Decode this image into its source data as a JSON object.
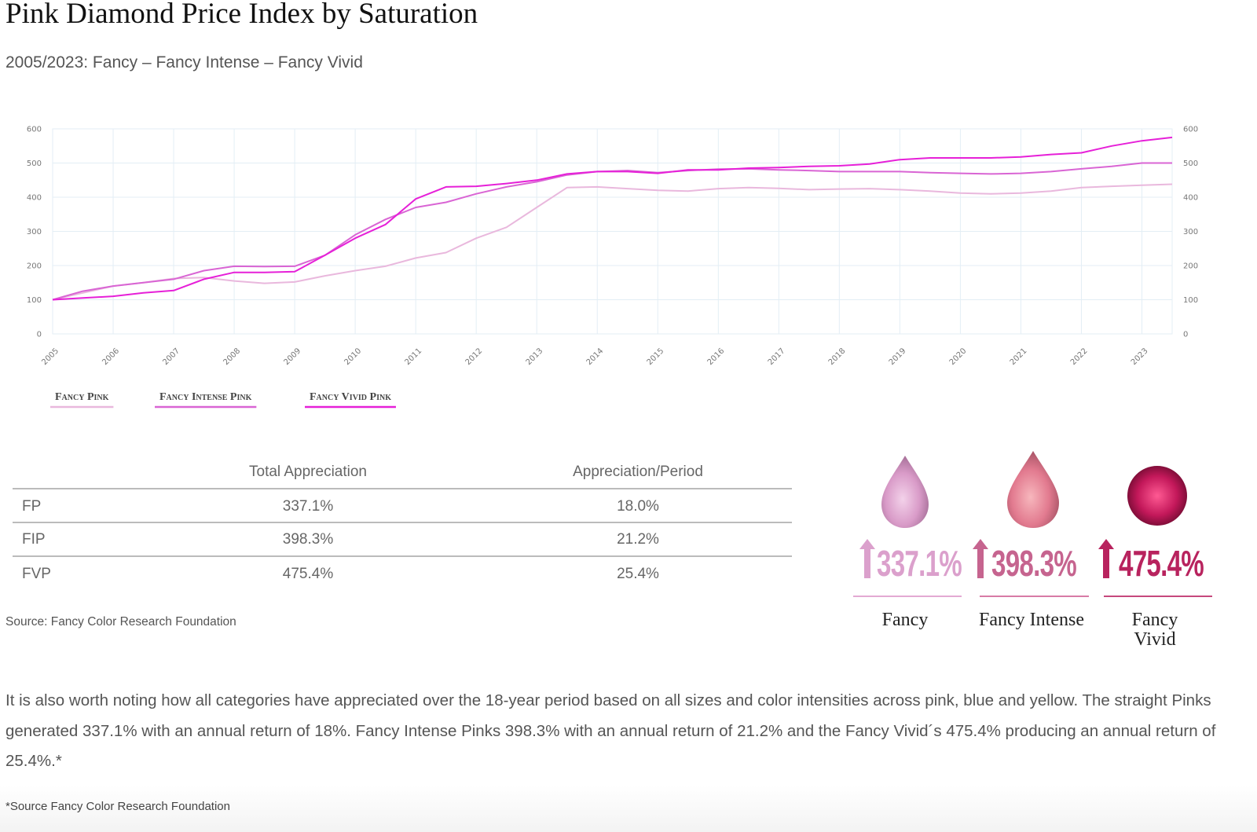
{
  "chart_data": {
    "type": "line",
    "title": "Pink Diamond Price Index by Saturation",
    "subtitle": "2005/2023: Fancy – Fancy Intense – Fancy Vivid",
    "x": [
      2005,
      2005.5,
      2006,
      2006.5,
      2007,
      2007.5,
      2008,
      2008.5,
      2009,
      2009.5,
      2010,
      2010.5,
      2011,
      2011.5,
      2012,
      2012.5,
      2013,
      2013.5,
      2014,
      2014.5,
      2015,
      2015.5,
      2016,
      2016.5,
      2017,
      2017.5,
      2018,
      2018.5,
      2019,
      2019.5,
      2020,
      2020.5,
      2021,
      2021.5,
      2022,
      2022.5,
      2023,
      2023.5
    ],
    "series": [
      {
        "name": "Fancy Pink",
        "color": "#e9b8dd",
        "values": [
          100,
          120,
          140,
          150,
          162,
          165,
          155,
          148,
          152,
          170,
          185,
          198,
          222,
          238,
          280,
          312,
          370,
          428,
          430,
          425,
          420,
          418,
          425,
          428,
          426,
          422,
          424,
          425,
          422,
          418,
          412,
          410,
          412,
          418,
          428,
          432,
          435,
          438
        ]
      },
      {
        "name": "Fancy Intense Pink",
        "color": "#d965d4",
        "values": [
          100,
          125,
          140,
          150,
          160,
          185,
          198,
          197,
          198,
          230,
          290,
          335,
          370,
          385,
          410,
          430,
          445,
          465,
          475,
          478,
          472,
          478,
          482,
          483,
          480,
          478,
          475,
          475,
          475,
          472,
          470,
          468,
          470,
          475,
          483,
          490,
          500,
          500
        ]
      },
      {
        "name": "Fancy Vivid Pink",
        "color": "#e620d8",
        "values": [
          100,
          105,
          110,
          120,
          127,
          160,
          180,
          180,
          182,
          230,
          280,
          320,
          395,
          430,
          432,
          440,
          450,
          468,
          475,
          475,
          470,
          480,
          480,
          485,
          487,
          490,
          492,
          497,
          510,
          515,
          515,
          515,
          518,
          525,
          530,
          550,
          565,
          575
        ]
      }
    ],
    "xlim": [
      2005,
      2023.5
    ],
    "xticks": [
      2005,
      2006,
      2007,
      2008,
      2009,
      2010,
      2011,
      2012,
      2013,
      2014,
      2015,
      2016,
      2017,
      2018,
      2019,
      2020,
      2021,
      2022,
      2023
    ],
    "ylim": [
      0,
      600
    ],
    "yticks": [
      0,
      100,
      200,
      300,
      400,
      500,
      600
    ],
    "y2lim": [
      0,
      600
    ],
    "y2ticks": [
      0,
      100,
      200,
      300,
      400,
      500,
      600
    ],
    "grid": true,
    "legend": "bottom-left"
  },
  "table": {
    "columns": [
      "Total Appreciation",
      "Appreciation/Period"
    ],
    "rows": [
      [
        "FP",
        "337.1%",
        "18.0%"
      ],
      [
        "FIP",
        "398.3%",
        "21.2%"
      ],
      [
        "FVP",
        "475.4%",
        "25.4%"
      ]
    ]
  },
  "source": "Source: Fancy Color Research Foundation",
  "highlights": [
    {
      "value": "337.1%",
      "label": "Fancy"
    },
    {
      "value": "398.3%",
      "label": "Fancy Intense"
    },
    {
      "value": "475.4%",
      "label": "Fancy Vivid"
    }
  ],
  "paragraph": "It is also worth noting how all categories have appreciated over the 18-year period based on all sizes and color intensities across pink, blue and yellow. The straight Pinks generated 337.1% with an annual return of 18%. Fancy Intense Pinks 398.3% with an annual return of 21.2% and the Fancy Vivid´s 475.4% producing an annual return of 25.4%.*",
  "footnote": "*Source Fancy Color Research Foundation"
}
